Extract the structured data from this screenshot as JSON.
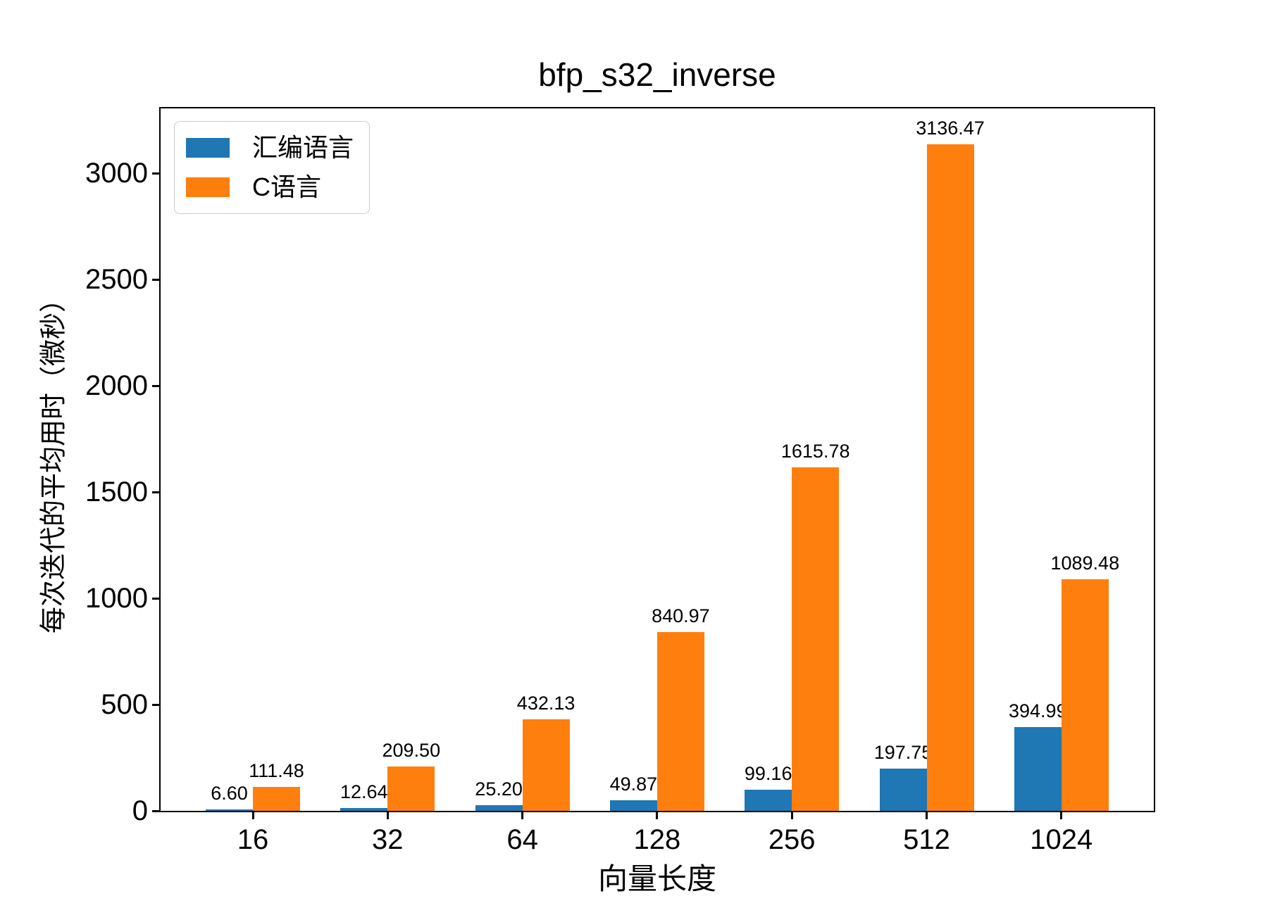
{
  "chart_data": {
    "type": "bar",
    "title": "bfp_s32_inverse",
    "xlabel": "向量长度",
    "ylabel": "每次迭代的平均用时（微秒）",
    "categories": [
      "16",
      "32",
      "64",
      "128",
      "256",
      "512",
      "1024"
    ],
    "series": [
      {
        "name": "汇编语言",
        "color": "#1f77b4",
        "values": [
          6.6,
          12.64,
          25.2,
          49.87,
          99.16,
          197.75,
          394.99
        ]
      },
      {
        "name": "C语言",
        "color": "#ff7f0e",
        "values": [
          111.48,
          209.5,
          432.13,
          840.97,
          1615.78,
          3136.47,
          1089.48
        ]
      }
    ],
    "value_label_decimals": 2,
    "yticks": [
      0,
      500,
      1000,
      1500,
      2000,
      2500,
      3000
    ],
    "ylim": [
      0,
      3305
    ],
    "grid": false,
    "legend_position": "upper-left",
    "axis_color": "#000000",
    "background_color": "#ffffff"
  }
}
